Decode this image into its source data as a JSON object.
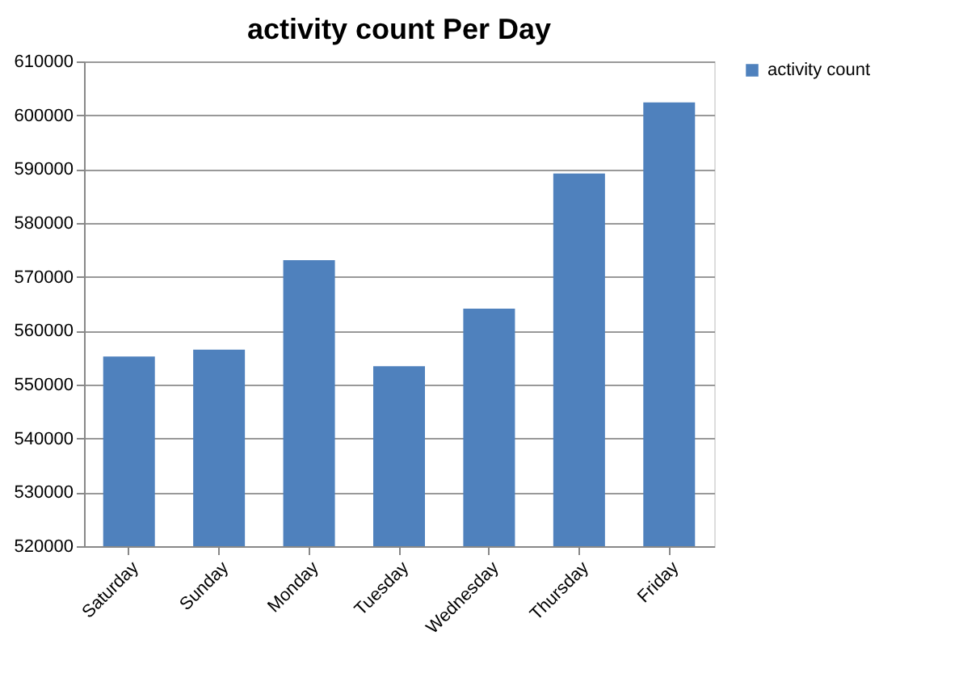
{
  "chart_data": {
    "type": "bar",
    "title": "activity count Per Day",
    "categories": [
      "Saturday",
      "Sunday",
      "Monday",
      "Tuesday",
      "Wednesday",
      "Thursday",
      "Friday"
    ],
    "series": [
      {
        "name": "activity count",
        "color": "#4f81bd",
        "values": [
          555200,
          556500,
          573100,
          553400,
          564100,
          589200,
          602400
        ]
      }
    ],
    "ylim": [
      520000,
      610000
    ],
    "yticks": [
      520000,
      530000,
      540000,
      550000,
      560000,
      570000,
      580000,
      590000,
      600000,
      610000
    ],
    "grid": "y",
    "legend": "right"
  }
}
